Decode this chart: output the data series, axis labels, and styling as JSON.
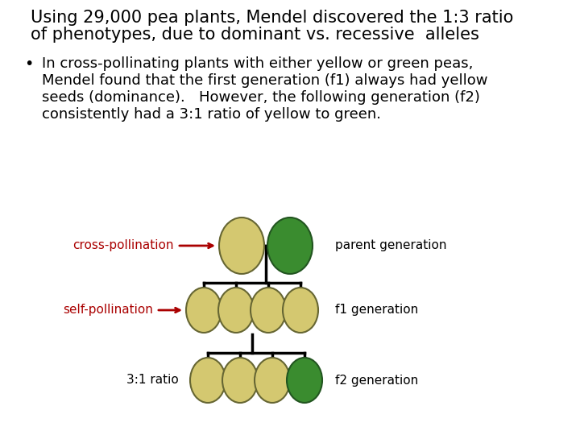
{
  "title_line1": "Using 29,000 pea plants, Mendel discovered the 1:3 ratio",
  "title_line2": "of phenotypes, due to dominant vs. recessive  alleles",
  "bullet_line1": "In cross-pollinating plants with either yellow or green peas,",
  "bullet_line2": "Mendel found that the first generation (f1) always had yellow",
  "bullet_line3": "seeds (dominance).   However, the following generation (f2)",
  "bullet_line4": "consistently had a 3:1 ratio of yellow to green.",
  "label_cross": "cross-pollination",
  "label_self": "self-pollination",
  "label_ratio": "3:1 ratio",
  "label_parent": "parent generation",
  "label_f1": "f1 generation",
  "label_f2": "f2 generation",
  "color_yellow": "#d4c870",
  "color_green": "#3a8c2f",
  "color_red": "#aa0000",
  "color_black": "#000000",
  "color_bg": "#ffffff",
  "title_fontsize": 15,
  "body_fontsize": 13,
  "label_fontsize": 11,
  "diag_fontsize": 11
}
